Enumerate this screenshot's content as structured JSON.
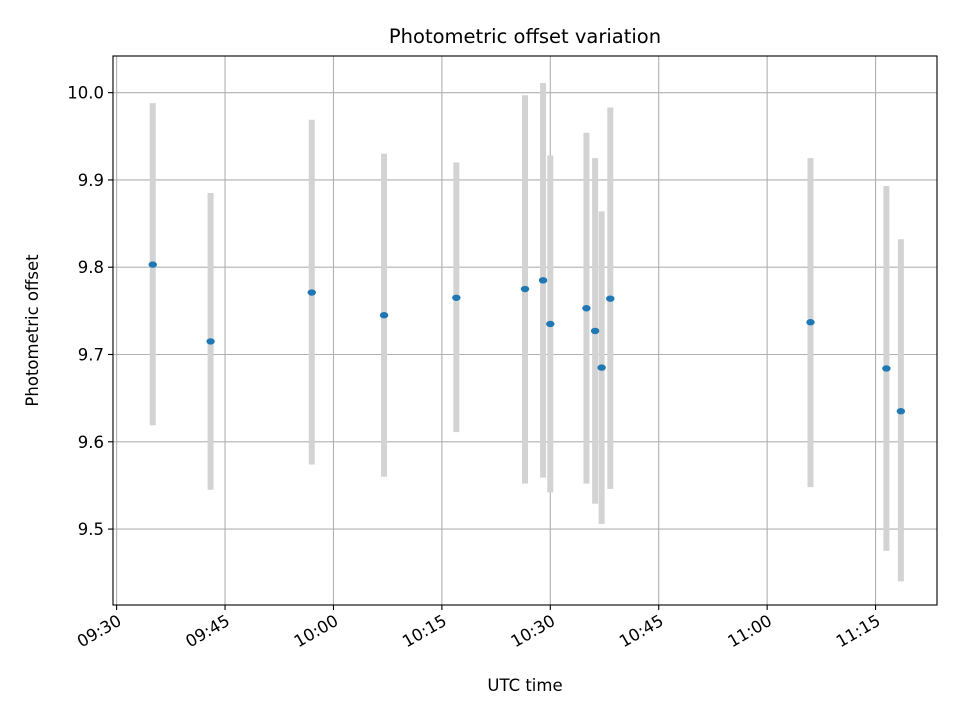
{
  "chart_data": {
    "type": "scatter",
    "title": "Photometric offset variation",
    "xlabel": "UTC time",
    "ylabel": "Photometric offset",
    "x_unit": "HH:MM UTC",
    "xlim": [
      "09:29.5",
      "11:23.5"
    ],
    "ylim": [
      9.413,
      10.042
    ],
    "grid": true,
    "x_ticks": [
      "09:30",
      "09:45",
      "10:00",
      "10:15",
      "10:30",
      "10:45",
      "11:00",
      "11:15"
    ],
    "y_ticks": [
      "9.5",
      "9.6",
      "9.7",
      "9.8",
      "9.9",
      "10.0"
    ],
    "point_color": "#1f77b4",
    "errorbar_color": "#d3d3d3",
    "points": [
      {
        "x": "09:35",
        "y": 9.803,
        "ylow": 9.619,
        "yhigh": 9.988
      },
      {
        "x": "09:43",
        "y": 9.715,
        "ylow": 9.545,
        "yhigh": 9.885
      },
      {
        "x": "09:57",
        "y": 9.771,
        "ylow": 9.574,
        "yhigh": 9.969
      },
      {
        "x": "10:07",
        "y": 9.745,
        "ylow": 9.56,
        "yhigh": 9.93
      },
      {
        "x": "10:17",
        "y": 9.765,
        "ylow": 9.611,
        "yhigh": 9.92
      },
      {
        "x": "10:26.5",
        "y": 9.775,
        "ylow": 9.552,
        "yhigh": 9.997
      },
      {
        "x": "10:29",
        "y": 9.785,
        "ylow": 9.559,
        "yhigh": 10.011
      },
      {
        "x": "10:30",
        "y": 9.735,
        "ylow": 9.542,
        "yhigh": 9.928
      },
      {
        "x": "10:35",
        "y": 9.753,
        "ylow": 9.552,
        "yhigh": 9.954
      },
      {
        "x": "10:36.2",
        "y": 9.727,
        "ylow": 9.529,
        "yhigh": 9.925
      },
      {
        "x": "10:37.1",
        "y": 9.685,
        "ylow": 9.506,
        "yhigh": 9.864
      },
      {
        "x": "10:38.3",
        "y": 9.764,
        "ylow": 9.546,
        "yhigh": 9.983
      },
      {
        "x": "11:06",
        "y": 9.737,
        "ylow": 9.548,
        "yhigh": 9.925
      },
      {
        "x": "11:16.5",
        "y": 9.684,
        "ylow": 9.475,
        "yhigh": 9.893
      },
      {
        "x": "11:18.5",
        "y": 9.635,
        "ylow": 9.44,
        "yhigh": 9.832
      }
    ]
  }
}
